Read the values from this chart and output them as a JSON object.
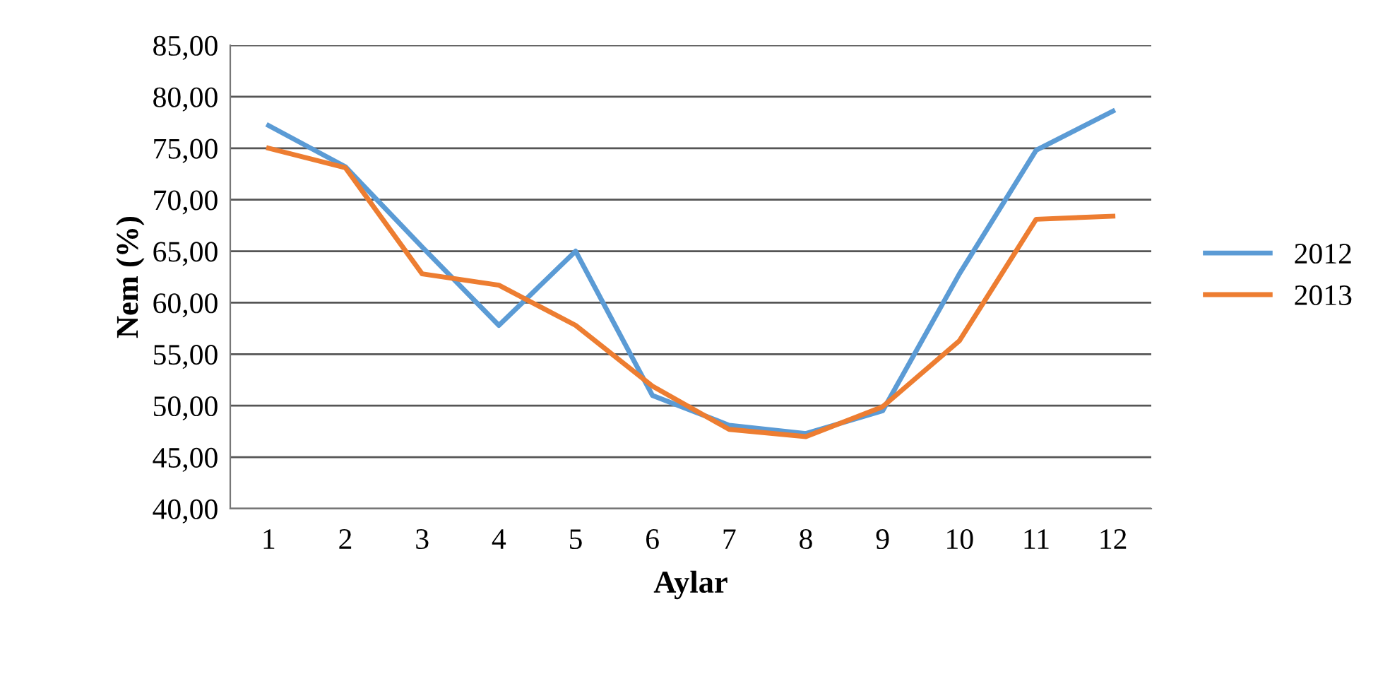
{
  "chart_data": {
    "type": "line",
    "xlabel": "Aylar",
    "ylabel": "Nem (%)",
    "categories": [
      "1",
      "2",
      "3",
      "4",
      "5",
      "6",
      "7",
      "8",
      "9",
      "10",
      "11",
      "12"
    ],
    "series": [
      {
        "name": "2012",
        "color": "#5b9bd5",
        "values": [
          77.2,
          73.2,
          65.4,
          57.8,
          65.0,
          51.0,
          48.1,
          47.3,
          49.5,
          62.8,
          74.8,
          78.6
        ]
      },
      {
        "name": "2013",
        "color": "#ed7d31",
        "values": [
          75.0,
          73.1,
          62.8,
          61.7,
          57.8,
          51.9,
          47.7,
          47.0,
          49.9,
          56.3,
          68.1,
          68.4
        ]
      }
    ],
    "ylim": [
      40,
      85
    ],
    "yticks": [
      {
        "value": 40,
        "label": "40,00"
      },
      {
        "value": 45,
        "label": "45,00"
      },
      {
        "value": 50,
        "label": "50,00"
      },
      {
        "value": 55,
        "label": "55,00"
      },
      {
        "value": 60,
        "label": "60,00"
      },
      {
        "value": 65,
        "label": "65,00"
      },
      {
        "value": 70,
        "label": "70,00"
      },
      {
        "value": 75,
        "label": "75,00"
      },
      {
        "value": 80,
        "label": "80,00"
      },
      {
        "value": 85,
        "label": "85,00"
      }
    ],
    "grid": "y",
    "legend": "right",
    "marker": "none",
    "line_style": "solid"
  }
}
